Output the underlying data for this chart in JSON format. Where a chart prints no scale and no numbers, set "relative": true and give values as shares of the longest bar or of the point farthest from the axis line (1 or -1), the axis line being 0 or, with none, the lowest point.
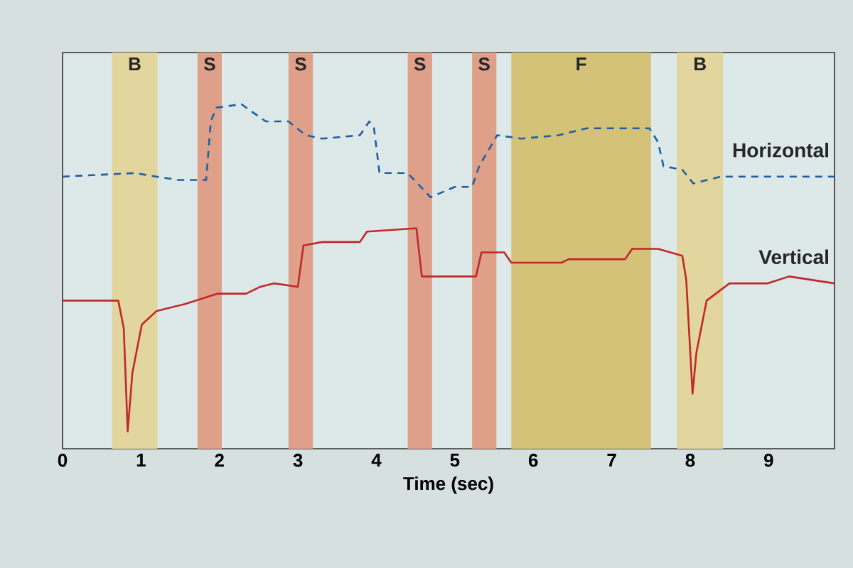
{
  "chart_data": {
    "type": "line",
    "xlabel": "Time (sec)",
    "relative": true,
    "tick_labels": "x",
    "xlim": [
      0,
      9.84
    ],
    "xticks": [
      0,
      1,
      2,
      3,
      4,
      5,
      6,
      7,
      8,
      9
    ],
    "bands": [
      {
        "axis": "x",
        "from": 0.63,
        "to": 1.21,
        "label": "B",
        "color": "#e3d59e"
      },
      {
        "axis": "x",
        "from": 1.72,
        "to": 2.03,
        "label": "S",
        "color": "#dfa08a"
      },
      {
        "axis": "x",
        "from": 2.88,
        "to": 3.19,
        "label": "S",
        "color": "#dfa08a"
      },
      {
        "axis": "x",
        "from": 4.4,
        "to": 4.71,
        "label": "S",
        "color": "#dfa08a"
      },
      {
        "axis": "x",
        "from": 5.22,
        "to": 5.53,
        "label": "S",
        "color": "#dfa08a"
      },
      {
        "axis": "x",
        "from": 5.72,
        "to": 7.5,
        "label": "F",
        "color": "#d3c278"
      },
      {
        "axis": "x",
        "from": 7.83,
        "to": 8.42,
        "label": "B",
        "color": "#e3d59e"
      }
    ],
    "series": [
      {
        "name": "Horizontal",
        "color": "#1f5fa0",
        "line_style": "dashed",
        "x": [
          0,
          0.92,
          1.47,
          1.83,
          1.89,
          1.96,
          2.28,
          2.59,
          2.88,
          3.1,
          3.31,
          3.79,
          3.91,
          3.97,
          4.04,
          4.4,
          4.69,
          5.0,
          5.22,
          5.31,
          5.54,
          5.85,
          6.32,
          6.68,
          7.48,
          7.59,
          7.66,
          7.9,
          8.04,
          8.39,
          9.84
        ],
        "values": [
          0.79,
          0.8,
          0.78,
          0.78,
          0.95,
          0.99,
          1.0,
          0.95,
          0.95,
          0.91,
          0.9,
          0.91,
          0.95,
          0.93,
          0.8,
          0.8,
          0.73,
          0.76,
          0.76,
          0.82,
          0.91,
          0.9,
          0.91,
          0.93,
          0.93,
          0.89,
          0.82,
          0.81,
          0.77,
          0.79,
          0.79
        ]
      },
      {
        "name": "Vertical",
        "color": "#c0282b",
        "line_style": "solid",
        "x": [
          0,
          0.71,
          0.78,
          0.83,
          0.89,
          1.01,
          1.2,
          1.56,
          1.97,
          2.34,
          2.52,
          2.7,
          3.0,
          3.07,
          3.31,
          3.79,
          3.88,
          4.51,
          4.58,
          5.0,
          5.27,
          5.34,
          5.63,
          5.72,
          6.36,
          6.45,
          7.17,
          7.26,
          7.59,
          7.9,
          7.95,
          8.03,
          8.08,
          8.21,
          8.5,
          8.99,
          9.26,
          9.84
        ],
        "values": [
          0.43,
          0.43,
          0.35,
          0.05,
          0.22,
          0.36,
          0.4,
          0.42,
          0.45,
          0.45,
          0.47,
          0.48,
          0.47,
          0.59,
          0.6,
          0.6,
          0.63,
          0.64,
          0.5,
          0.5,
          0.5,
          0.57,
          0.57,
          0.54,
          0.54,
          0.55,
          0.55,
          0.58,
          0.58,
          0.56,
          0.49,
          0.16,
          0.28,
          0.43,
          0.48,
          0.48,
          0.5,
          0.48
        ]
      }
    ]
  }
}
